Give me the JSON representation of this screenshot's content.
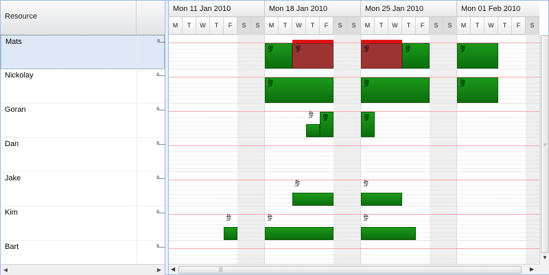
{
  "columns": {
    "resource_header": "Resource"
  },
  "weeks": [
    "Mon 11 Jan 2010",
    "Mon 18 Jan 2010",
    "Mon 25 Jan 2010",
    "Mon 01 Feb 2010"
  ],
  "day_letters": [
    "M",
    "T",
    "W",
    "T",
    "F",
    "S",
    "S"
  ],
  "resources": [
    {
      "name": "Mats",
      "hours": "8",
      "selected": true
    },
    {
      "name": "Nickolay",
      "hours": "8"
    },
    {
      "name": "Goran",
      "hours": "8"
    },
    {
      "name": "Dan",
      "hours": "8"
    },
    {
      "name": "Jake",
      "hours": "8"
    },
    {
      "name": "Kim",
      "hours": "8"
    },
    {
      "name": "Bart",
      "hours": "8"
    }
  ],
  "allocations": [
    {
      "resource": 0,
      "from_day": 7,
      "to_day": 9,
      "label": "8h",
      "status": "normal"
    },
    {
      "resource": 0,
      "from_day": 9,
      "to_day": 12,
      "label": "9h",
      "status": "over"
    },
    {
      "resource": 0,
      "from_day": 14,
      "to_day": 17,
      "label": "9h",
      "status": "over"
    },
    {
      "resource": 0,
      "from_day": 17,
      "to_day": 19,
      "label": "8h",
      "status": "normal"
    },
    {
      "resource": 0,
      "from_day": 21,
      "to_day": 24,
      "label": "8h",
      "status": "normal"
    },
    {
      "resource": 1,
      "from_day": 7,
      "to_day": 12,
      "label": "8h",
      "status": "normal"
    },
    {
      "resource": 1,
      "from_day": 14,
      "to_day": 19,
      "label": "8h",
      "status": "normal"
    },
    {
      "resource": 1,
      "from_day": 21,
      "to_day": 24,
      "label": "8h",
      "status": "normal"
    },
    {
      "resource": 2,
      "from_day": 10,
      "to_day": 11,
      "label": "4h",
      "status": "normal",
      "level": 0.5
    },
    {
      "resource": 2,
      "from_day": 11,
      "to_day": 12,
      "label": "8h",
      "status": "normal"
    },
    {
      "resource": 2,
      "from_day": 14,
      "to_day": 15,
      "label": "8h",
      "status": "normal"
    },
    {
      "resource": 4,
      "from_day": 9,
      "to_day": 12,
      "label": "4h",
      "status": "normal",
      "level": 0.5
    },
    {
      "resource": 4,
      "from_day": 14,
      "to_day": 17,
      "label": "4h",
      "status": "normal",
      "level": 0.5
    },
    {
      "resource": 5,
      "from_day": 4,
      "to_day": 5,
      "label": "4h",
      "status": "normal",
      "level": 0.5
    },
    {
      "resource": 5,
      "from_day": 7,
      "to_day": 12,
      "label": "4h",
      "status": "normal",
      "level": 0.5
    },
    {
      "resource": 5,
      "from_day": 14,
      "to_day": 18,
      "label": "4h",
      "status": "normal",
      "level": 0.5
    }
  ],
  "colors": {
    "bar": "#1a8a1a",
    "overload": "#9c3434",
    "overload_cap": "#e21414",
    "capacity_line": "#f3a8a8"
  }
}
